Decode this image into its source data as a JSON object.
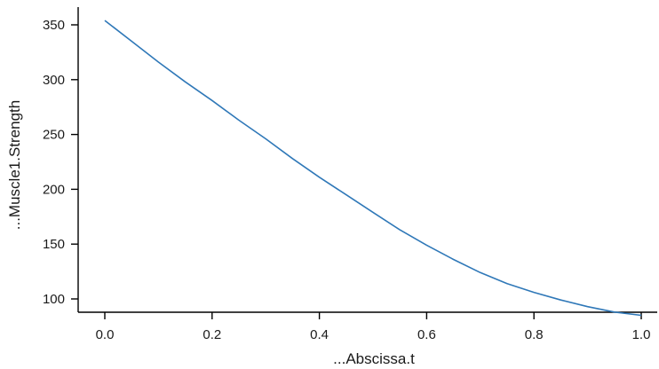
{
  "chart_data": {
    "type": "line",
    "title": "",
    "xlabel": "...Abscissa.t",
    "ylabel": "...Muscle1.Strength",
    "xlim": [
      0.0,
      1.0
    ],
    "ylim": [
      100,
      350
    ],
    "x_ticks": [
      "0.0",
      "0.2",
      "0.4",
      "0.6",
      "0.8",
      "1.0"
    ],
    "y_ticks": [
      "100",
      "150",
      "200",
      "250",
      "300",
      "350"
    ],
    "grid": false,
    "legend": "none",
    "line_color": "#2f78b8",
    "series": [
      {
        "x": [
          0.0,
          0.05,
          0.1,
          0.15,
          0.2,
          0.25,
          0.3,
          0.35,
          0.4,
          0.45,
          0.5,
          0.55,
          0.6,
          0.65,
          0.7,
          0.75,
          0.8,
          0.85,
          0.9,
          0.95,
          1.0
        ],
        "y": [
          354,
          335,
          316,
          298,
          281,
          263,
          246,
          228,
          211,
          195,
          179,
          163,
          149,
          136,
          124,
          114,
          106,
          99,
          93,
          88,
          85
        ]
      }
    ]
  }
}
